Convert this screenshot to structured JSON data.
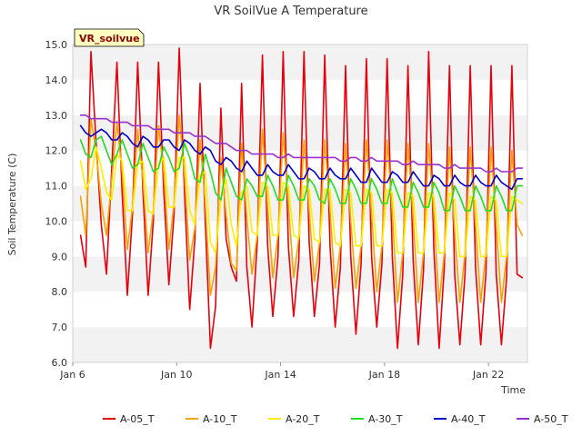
{
  "chart_data": {
    "type": "line",
    "title": "VR SoilVue A Temperature",
    "site_label": "VR_soilvue",
    "xlabel": "Time",
    "ylabel": "Soil Temperature (C)",
    "xlim": [
      6,
      23.5
    ],
    "ylim": [
      6.0,
      15.0
    ],
    "x_unit": "day of January",
    "x_ticks": [
      6,
      10,
      14,
      18,
      22
    ],
    "x_tick_labels": [
      "Jan 6",
      "Jan 10",
      "Jan 14",
      "Jan 18",
      "Jan 22"
    ],
    "y_ticks": [
      6.0,
      7.0,
      8.0,
      9.0,
      10.0,
      11.0,
      12.0,
      13.0,
      14.0,
      15.0
    ],
    "y_tick_labels": [
      "6.0",
      "7.0",
      "8.0",
      "9.0",
      "10.0",
      "11.0",
      "12.0",
      "13.0",
      "14.0",
      "15.0"
    ],
    "grid": "horizontal alternating bands",
    "legend_position": "bottom",
    "x": [
      6.3,
      6.5,
      6.7,
      6.9,
      7.1,
      7.3,
      7.5,
      7.7,
      7.9,
      8.1,
      8.3,
      8.5,
      8.7,
      8.9,
      9.1,
      9.3,
      9.5,
      9.7,
      9.9,
      10.1,
      10.3,
      10.5,
      10.7,
      10.9,
      11.1,
      11.3,
      11.5,
      11.7,
      11.9,
      12.1,
      12.3,
      12.5,
      12.7,
      12.9,
      13.1,
      13.3,
      13.5,
      13.7,
      13.9,
      14.1,
      14.3,
      14.5,
      14.7,
      14.9,
      15.1,
      15.3,
      15.5,
      15.7,
      15.9,
      16.1,
      16.3,
      16.5,
      16.7,
      16.9,
      17.1,
      17.3,
      17.5,
      17.7,
      17.9,
      18.1,
      18.3,
      18.5,
      18.7,
      18.9,
      19.1,
      19.3,
      19.5,
      19.7,
      19.9,
      20.1,
      20.3,
      20.5,
      20.7,
      20.9,
      21.1,
      21.3,
      21.5,
      21.7,
      21.9,
      22.1,
      22.3,
      22.5,
      22.7,
      22.9,
      23.1,
      23.3
    ],
    "series": [
      {
        "name": "A-05_T",
        "color": "#e8000b",
        "values": [
          9.6,
          8.7,
          14.8,
          12.2,
          9.9,
          8.5,
          11.5,
          14.5,
          10.8,
          7.9,
          10.2,
          14.5,
          10.9,
          7.9,
          10.0,
          14.5,
          10.9,
          8.2,
          10.2,
          14.9,
          10.8,
          7.5,
          9.5,
          13.9,
          10.0,
          6.4,
          7.6,
          13.2,
          9.5,
          8.7,
          8.3,
          13.9,
          8.7,
          7.0,
          9.4,
          14.7,
          9.3,
          7.3,
          9.0,
          14.8,
          9.3,
          7.3,
          8.9,
          14.8,
          9.4,
          7.3,
          8.8,
          14.7,
          9.3,
          7.0,
          8.7,
          14.4,
          9.0,
          6.8,
          8.8,
          14.6,
          9.0,
          7.0,
          8.8,
          14.6,
          9.0,
          6.4,
          8.5,
          14.4,
          8.9,
          6.5,
          8.6,
          14.8,
          9.2,
          6.4,
          8.7,
          14.4,
          8.5,
          6.5,
          8.5,
          14.4,
          8.7,
          6.5,
          8.5,
          14.4,
          8.5,
          6.5,
          8.4,
          14.4,
          8.5,
          8.4
        ]
      },
      {
        "name": "A-10_T",
        "color": "#f5a300",
        "values": [
          10.7,
          9.6,
          12.9,
          12.0,
          10.5,
          9.6,
          11.2,
          12.8,
          11.4,
          9.2,
          10.4,
          12.6,
          11.2,
          9.1,
          10.3,
          12.7,
          11.4,
          9.2,
          10.5,
          13.0,
          11.3,
          8.9,
          9.8,
          12.3,
          10.5,
          7.9,
          8.7,
          11.8,
          10.2,
          8.8,
          8.6,
          12.2,
          10.1,
          8.5,
          9.6,
          12.6,
          10.4,
          8.4,
          9.6,
          12.5,
          10.5,
          8.4,
          9.5,
          12.3,
          10.3,
          8.3,
          9.4,
          12.3,
          10.3,
          8.1,
          9.3,
          12.2,
          10.0,
          8.1,
          9.3,
          12.3,
          10.2,
          8.0,
          9.3,
          12.3,
          10.2,
          7.7,
          9.1,
          12.2,
          10.1,
          7.7,
          9.1,
          12.2,
          10.2,
          7.7,
          9.1,
          12.1,
          9.7,
          7.7,
          9.1,
          12.1,
          9.9,
          7.7,
          9.1,
          12.1,
          9.9,
          7.7,
          9.0,
          12.0,
          9.9,
          9.6
        ]
      },
      {
        "name": "A-20_T",
        "color": "#ffee00",
        "values": [
          11.7,
          10.9,
          11.2,
          12.1,
          11.5,
          10.8,
          10.6,
          11.9,
          11.7,
          10.3,
          10.3,
          11.6,
          11.7,
          10.3,
          10.2,
          11.6,
          11.8,
          10.4,
          10.4,
          11.8,
          11.8,
          10.3,
          9.9,
          11.3,
          11.4,
          9.4,
          9.1,
          10.6,
          11.2,
          9.9,
          9.3,
          10.8,
          11.0,
          9.7,
          9.6,
          11.1,
          11.0,
          9.6,
          9.6,
          11.1,
          11.0,
          9.6,
          9.5,
          11.0,
          10.9,
          9.5,
          9.4,
          10.9,
          10.9,
          9.4,
          9.3,
          10.9,
          10.8,
          9.3,
          9.3,
          10.9,
          10.8,
          9.3,
          9.3,
          10.9,
          10.8,
          9.1,
          9.1,
          10.8,
          10.7,
          9.1,
          9.1,
          10.8,
          10.7,
          9.1,
          9.1,
          10.8,
          10.6,
          9.0,
          9.0,
          10.7,
          10.6,
          9.0,
          9.0,
          10.7,
          10.6,
          9.0,
          9.0,
          10.7,
          10.6,
          10.5
        ]
      },
      {
        "name": "A-30_T",
        "color": "#22dd22",
        "values": [
          12.3,
          11.9,
          11.8,
          12.3,
          12.4,
          12.0,
          11.6,
          11.9,
          12.3,
          11.9,
          11.5,
          11.6,
          12.2,
          11.8,
          11.4,
          11.5,
          12.1,
          11.8,
          11.4,
          11.5,
          12.2,
          11.8,
          11.2,
          11.1,
          11.9,
          11.4,
          10.8,
          10.6,
          11.5,
          11.1,
          10.7,
          10.6,
          11.2,
          11.0,
          10.7,
          10.7,
          11.3,
          11.0,
          10.6,
          10.6,
          11.3,
          11.0,
          10.6,
          10.6,
          11.2,
          11.0,
          10.6,
          10.5,
          11.2,
          10.9,
          10.5,
          10.5,
          11.2,
          10.9,
          10.5,
          10.5,
          11.2,
          10.9,
          10.5,
          10.5,
          11.2,
          10.8,
          10.4,
          10.4,
          11.1,
          10.8,
          10.4,
          10.4,
          11.1,
          10.8,
          10.3,
          10.3,
          11.0,
          10.7,
          10.3,
          10.3,
          11.0,
          10.7,
          10.3,
          10.3,
          11.0,
          10.7,
          10.3,
          10.3,
          11.0,
          11.0
        ]
      },
      {
        "name": "A-40_T",
        "color": "#0000cc",
        "values": [
          12.7,
          12.5,
          12.4,
          12.5,
          12.6,
          12.5,
          12.3,
          12.3,
          12.5,
          12.4,
          12.2,
          12.1,
          12.4,
          12.3,
          12.1,
          12.1,
          12.3,
          12.3,
          12.1,
          12.0,
          12.3,
          12.2,
          12.0,
          11.9,
          12.1,
          12.0,
          11.7,
          11.6,
          11.8,
          11.7,
          11.5,
          11.4,
          11.7,
          11.5,
          11.3,
          11.3,
          11.6,
          11.4,
          11.3,
          11.3,
          11.6,
          11.4,
          11.2,
          11.2,
          11.5,
          11.4,
          11.2,
          11.2,
          11.5,
          11.3,
          11.2,
          11.2,
          11.5,
          11.3,
          11.1,
          11.1,
          11.5,
          11.3,
          11.1,
          11.1,
          11.4,
          11.3,
          11.1,
          11.1,
          11.4,
          11.2,
          11.0,
          11.0,
          11.3,
          11.2,
          11.0,
          11.0,
          11.3,
          11.1,
          11.0,
          11.0,
          11.3,
          11.1,
          11.0,
          11.0,
          11.3,
          11.1,
          11.0,
          10.9,
          11.2,
          11.2
        ]
      },
      {
        "name": "A-50_T",
        "color": "#9b30d0",
        "values": [
          13.0,
          13.0,
          12.9,
          12.9,
          12.9,
          12.9,
          12.8,
          12.8,
          12.8,
          12.8,
          12.7,
          12.7,
          12.7,
          12.7,
          12.6,
          12.6,
          12.6,
          12.6,
          12.5,
          12.5,
          12.5,
          12.5,
          12.4,
          12.4,
          12.4,
          12.3,
          12.2,
          12.2,
          12.2,
          12.1,
          12.0,
          12.0,
          12.0,
          11.9,
          11.9,
          11.9,
          11.9,
          11.9,
          11.8,
          11.8,
          11.9,
          11.8,
          11.8,
          11.8,
          11.8,
          11.8,
          11.8,
          11.8,
          11.8,
          11.8,
          11.7,
          11.7,
          11.8,
          11.8,
          11.7,
          11.7,
          11.8,
          11.7,
          11.7,
          11.7,
          11.7,
          11.7,
          11.6,
          11.6,
          11.7,
          11.6,
          11.6,
          11.6,
          11.6,
          11.6,
          11.5,
          11.5,
          11.6,
          11.5,
          11.5,
          11.5,
          11.5,
          11.5,
          11.4,
          11.4,
          11.5,
          11.4,
          11.4,
          11.4,
          11.5,
          11.5
        ]
      }
    ]
  }
}
